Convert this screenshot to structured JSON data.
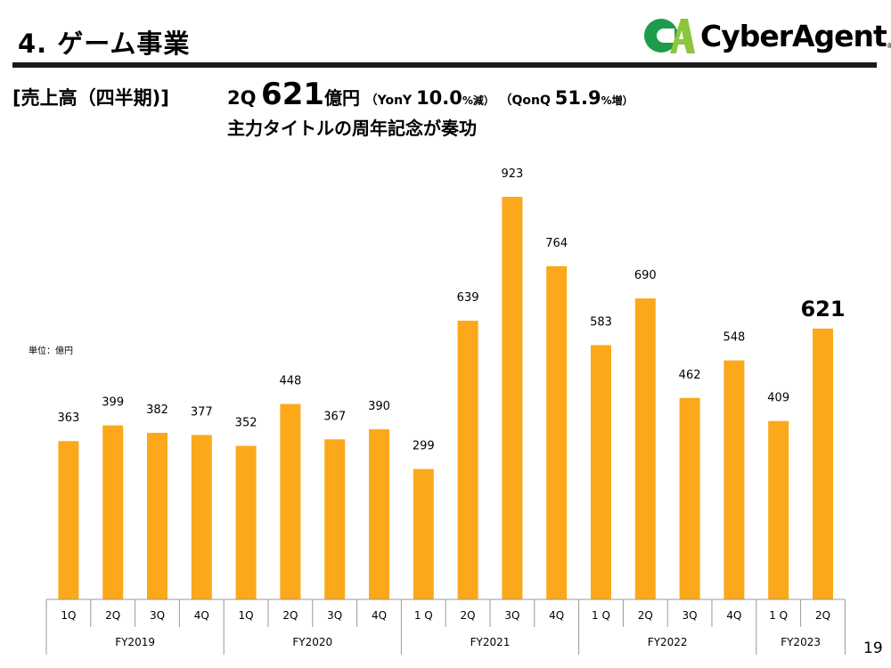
{
  "header": {
    "title": "4. ゲーム事業",
    "logo_text": "CyberAgent",
    "logo_mark": "CA",
    "logo_reg": "®"
  },
  "headline": {
    "section": "[売上高（四半期)]",
    "quarter": "2Q",
    "value": "621",
    "unit": "億円",
    "yoy_label": "（YonY ",
    "yoy_value": "10.0",
    "yoy_suffix": "%減）",
    "qoq_label": "（QonQ ",
    "qoq_value": "51.9",
    "qoq_suffix": "%増）",
    "subtitle": "主力タイトルの周年記念が奏功"
  },
  "page_number": "19",
  "colors": {
    "bar": "#FBA81A",
    "logo_dark": "#1E9C4B",
    "logo_light": "#8CC63F"
  },
  "chart_data": {
    "type": "bar",
    "title": "",
    "unit_label": "単位：億円",
    "categories": [
      "1Q",
      "2Q",
      "3Q",
      "4Q",
      "1Q",
      "2Q",
      "3Q",
      "4Q",
      "1 Q",
      "2Q",
      "3Q",
      "4Q",
      "1 Q",
      "2Q",
      "3Q",
      "4Q",
      "1 Q",
      "2Q"
    ],
    "groups": [
      {
        "label": "FY2019",
        "count": 4
      },
      {
        "label": "FY2020",
        "count": 4
      },
      {
        "label": "FY2021",
        "count": 4
      },
      {
        "label": "FY2022",
        "count": 4
      },
      {
        "label": "FY2023",
        "count": 2
      }
    ],
    "values": [
      363,
      399,
      382,
      377,
      352,
      448,
      367,
      390,
      299,
      639,
      923,
      764,
      583,
      690,
      462,
      548,
      409,
      621
    ],
    "highlight_index": 17,
    "ylim": [
      0,
      923
    ],
    "grid": false
  }
}
